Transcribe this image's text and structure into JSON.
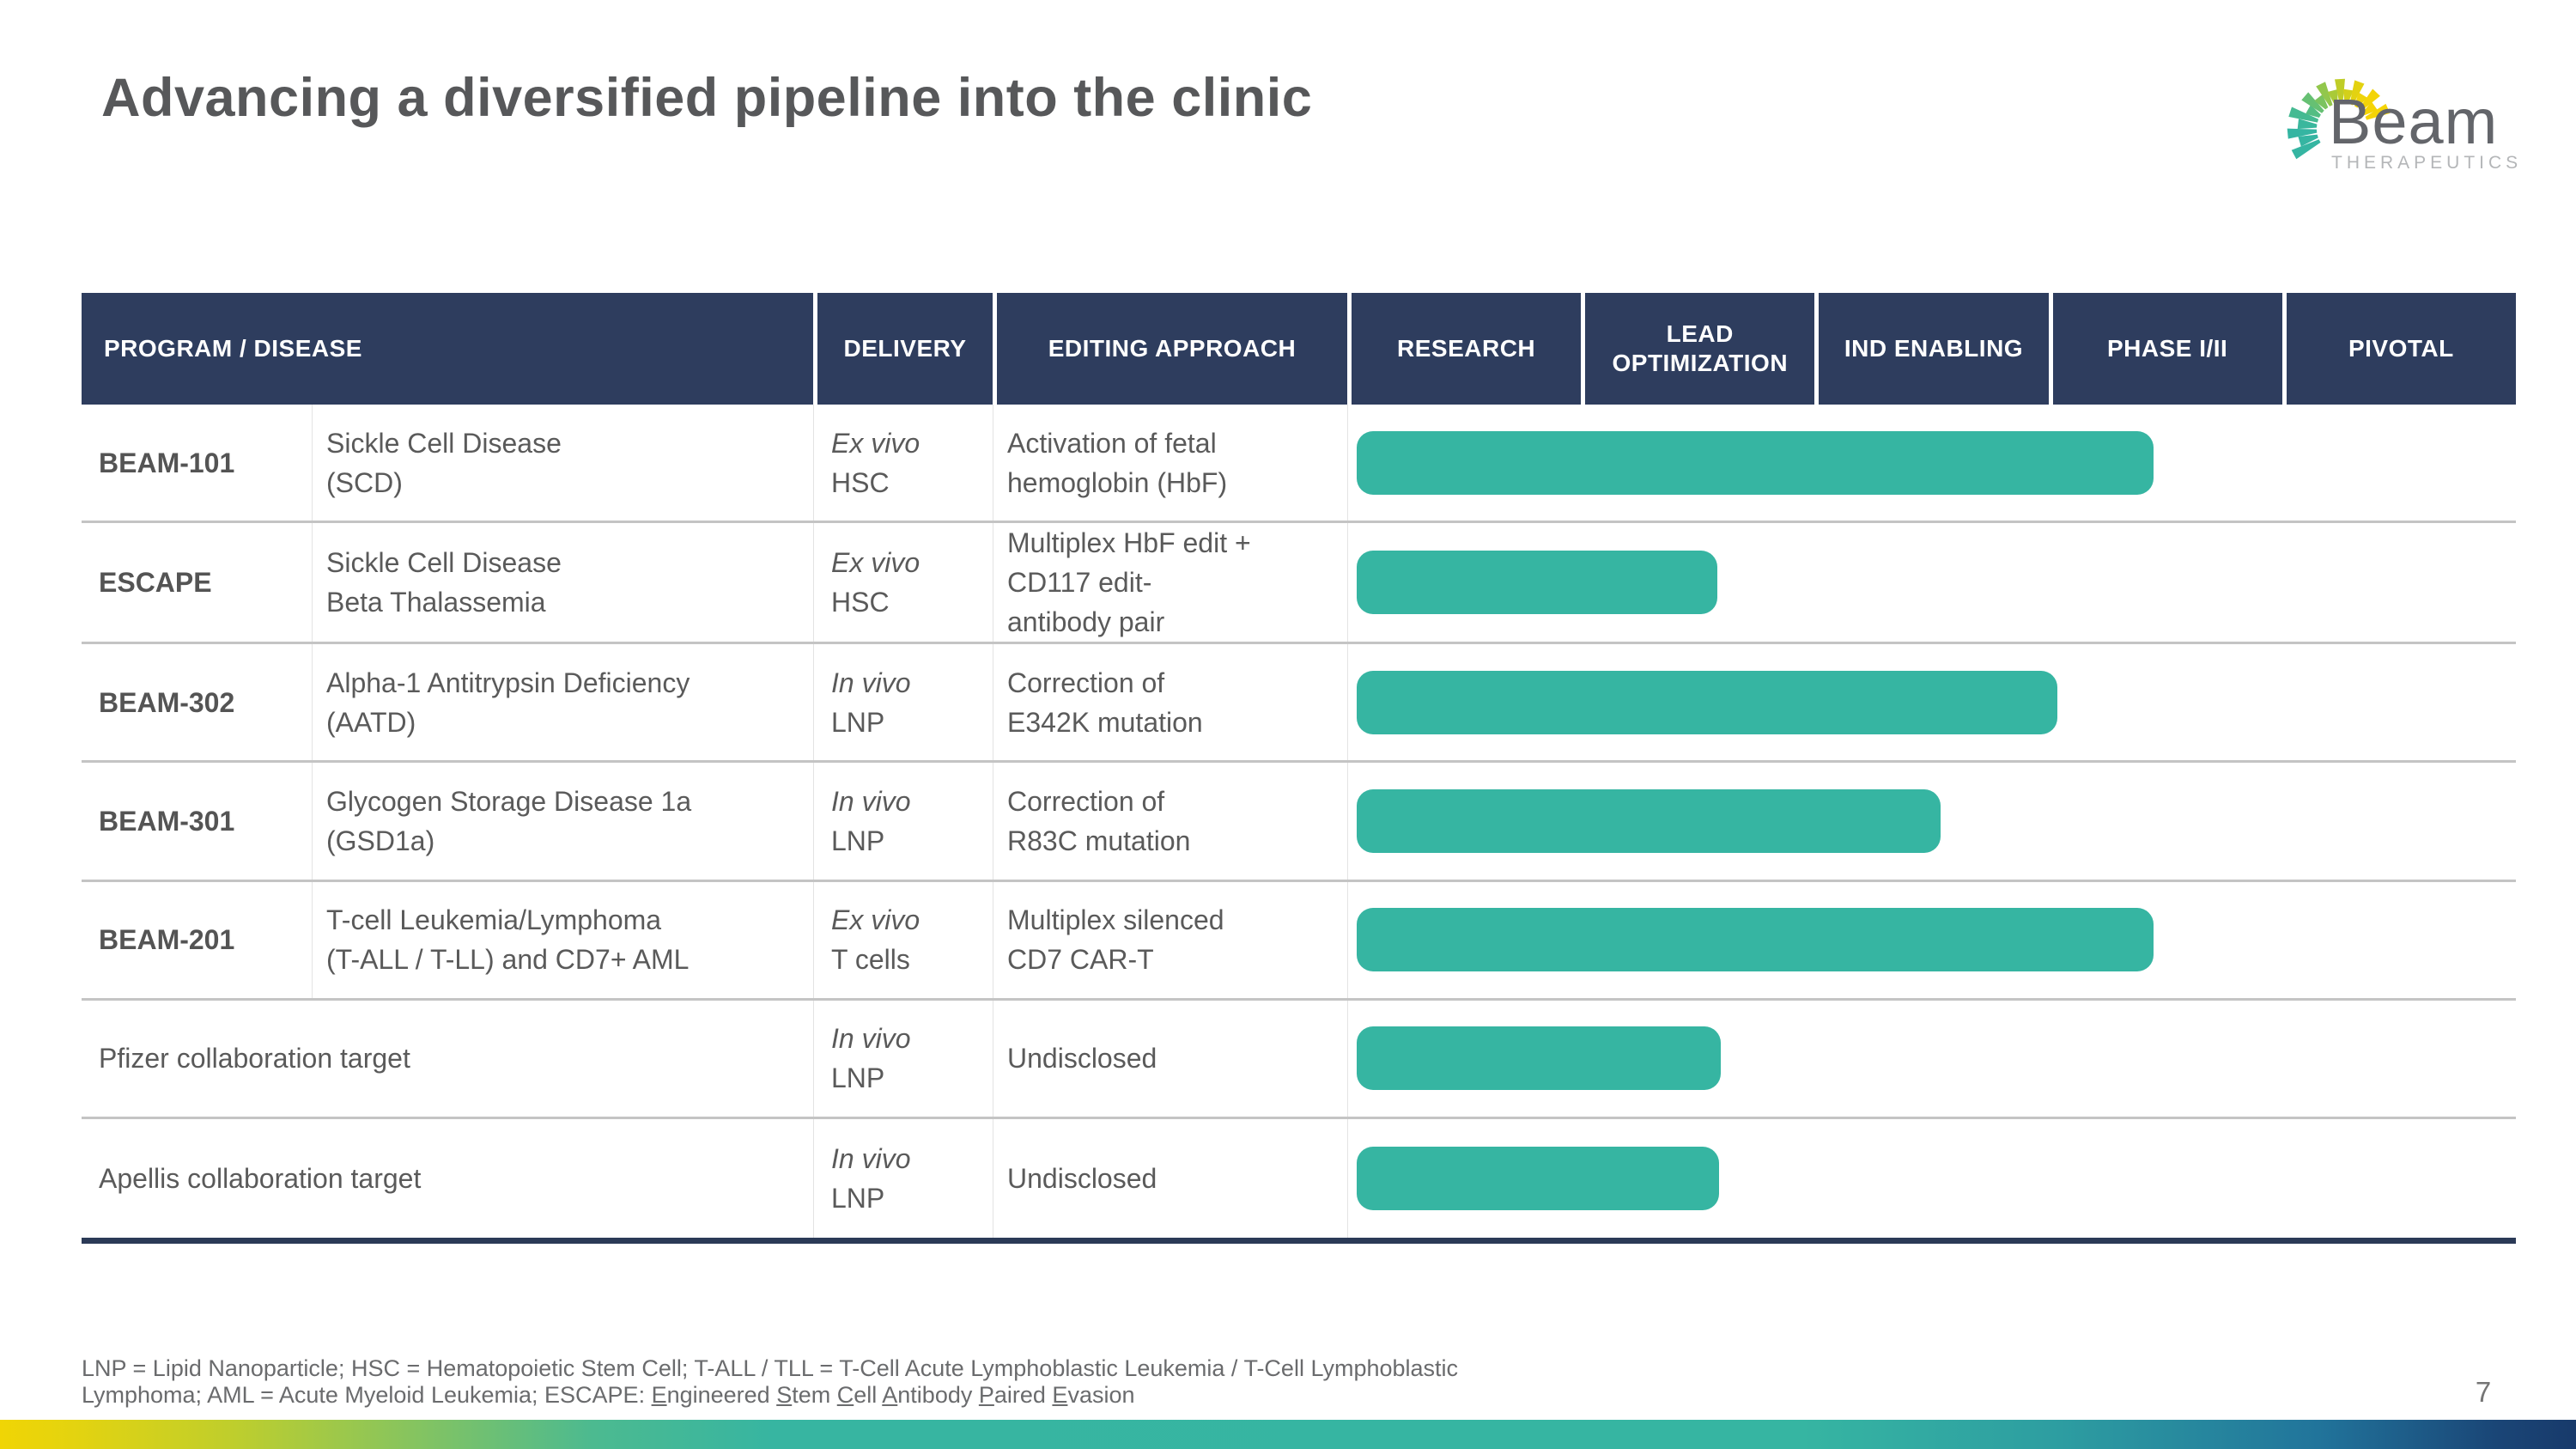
{
  "slide": {
    "title": "Advancing a diversified pipeline into the clinic",
    "page_number": "7"
  },
  "logo": {
    "brand": "Beam",
    "brand_sub": "THERAPEUTICS",
    "ray_colors": [
      "#35b5a2",
      "#35b5a2",
      "#35b5a2",
      "#3ab79d",
      "#45ba92",
      "#54bd83",
      "#66c073",
      "#7bc360",
      "#92c74c",
      "#a9ca38",
      "#bfcd27",
      "#d3d01a",
      "#e3d211",
      "#eed40b",
      "#f3d408",
      "#f5d406",
      "#f5d406"
    ]
  },
  "table": {
    "headers": {
      "program_disease": "PROGRAM / DISEASE",
      "delivery": "DELIVERY",
      "editing": "EDITING APPROACH",
      "stages": [
        "RESEARCH",
        "LEAD OPTIMIZATION",
        "IND ENABLING",
        "PHASE I/II",
        "PIVOTAL"
      ]
    },
    "rows": [
      {
        "program": "BEAM-101",
        "disease": "Sickle Cell Disease\n(SCD)",
        "delivery_method": "Ex vivo",
        "delivery_vehicle": "HSC",
        "editing": "Activation of fetal\nhemoglobin (HbF)",
        "stage_reached": "Phase I/II",
        "bar_style": "left:0.7%;width:68.3%"
      },
      {
        "program": "ESCAPE",
        "disease": "Sickle Cell Disease\nBeta Thalassemia",
        "delivery_method": "Ex vivo",
        "delivery_vehicle": "HSC",
        "editing": "Multiplex HbF edit +\nCD117 edit-\nantibody pair",
        "stage_reached": "Lead Optimization",
        "bar_style": "left:0.7%;width:30.9%"
      },
      {
        "program": "BEAM-302",
        "disease": "Alpha-1 Antitrypsin Deficiency\n(AATD)",
        "delivery_method": "In vivo",
        "delivery_vehicle": "LNP",
        "editing": "Correction of\nE342K mutation",
        "stage_reached": "IND Enabling",
        "bar_style": "left:0.7%;width:60%"
      },
      {
        "program": "BEAM-301",
        "disease": "Glycogen Storage Disease 1a\n(GSD1a)",
        "delivery_method": "In vivo",
        "delivery_vehicle": "LNP",
        "editing": "Correction of\nR83C mutation",
        "stage_reached": "IND Enabling",
        "bar_style": "left:0.7%;width:50%"
      },
      {
        "program": "BEAM-201",
        "disease": "T-cell Leukemia/Lymphoma\n(T-ALL / T-LL) and CD7+ AML",
        "delivery_method": "Ex vivo",
        "delivery_vehicle": "T cells",
        "editing": "Multiplex silenced\nCD7 CAR-T",
        "stage_reached": "Phase I/II",
        "bar_style": "left:0.7%;width:68.3%"
      },
      {
        "program": "Pfizer collaboration target",
        "delivery_method": "In vivo",
        "delivery_vehicle": "LNP",
        "editing": "Undisclosed",
        "stage_reached": "Lead Optimization",
        "bar_style": "left:0.7%;width:31.2%"
      },
      {
        "program": "Apellis collaboration target",
        "delivery_method": "In vivo",
        "delivery_vehicle": "LNP",
        "editing": "Undisclosed",
        "stage_reached": "Lead Optimization",
        "bar_style": "left:0.7%;width:31.1%"
      }
    ]
  },
  "footnote": {
    "line1": "LNP = Lipid Nanoparticle; HSC = Hematopoietic Stem Cell; T-ALL / TLL = T-Cell Acute Lymphoblastic Leukemia / T-Cell Lymphoblastic",
    "line2_segments": [
      {
        "t": "Lymphoma; AML = Acute Myeloid Leukemia; ESCAPE: "
      },
      {
        "t": "E",
        "u": true
      },
      {
        "t": "ngineered "
      },
      {
        "t": "S",
        "u": true
      },
      {
        "t": "tem "
      },
      {
        "t": "C",
        "u": true
      },
      {
        "t": "ell "
      },
      {
        "t": "A",
        "u": true
      },
      {
        "t": "ntibody "
      },
      {
        "t": "P",
        "u": true
      },
      {
        "t": "aired "
      },
      {
        "t": "E",
        "u": true
      },
      {
        "t": "vasion"
      }
    ]
  },
  "colors": {
    "header_navy": "#2e3d5e",
    "bar_teal": "#36b5a2",
    "accent_yellow": "#f5d406",
    "title_gray": "#57585a",
    "body_gray": "#5a5a5a"
  }
}
